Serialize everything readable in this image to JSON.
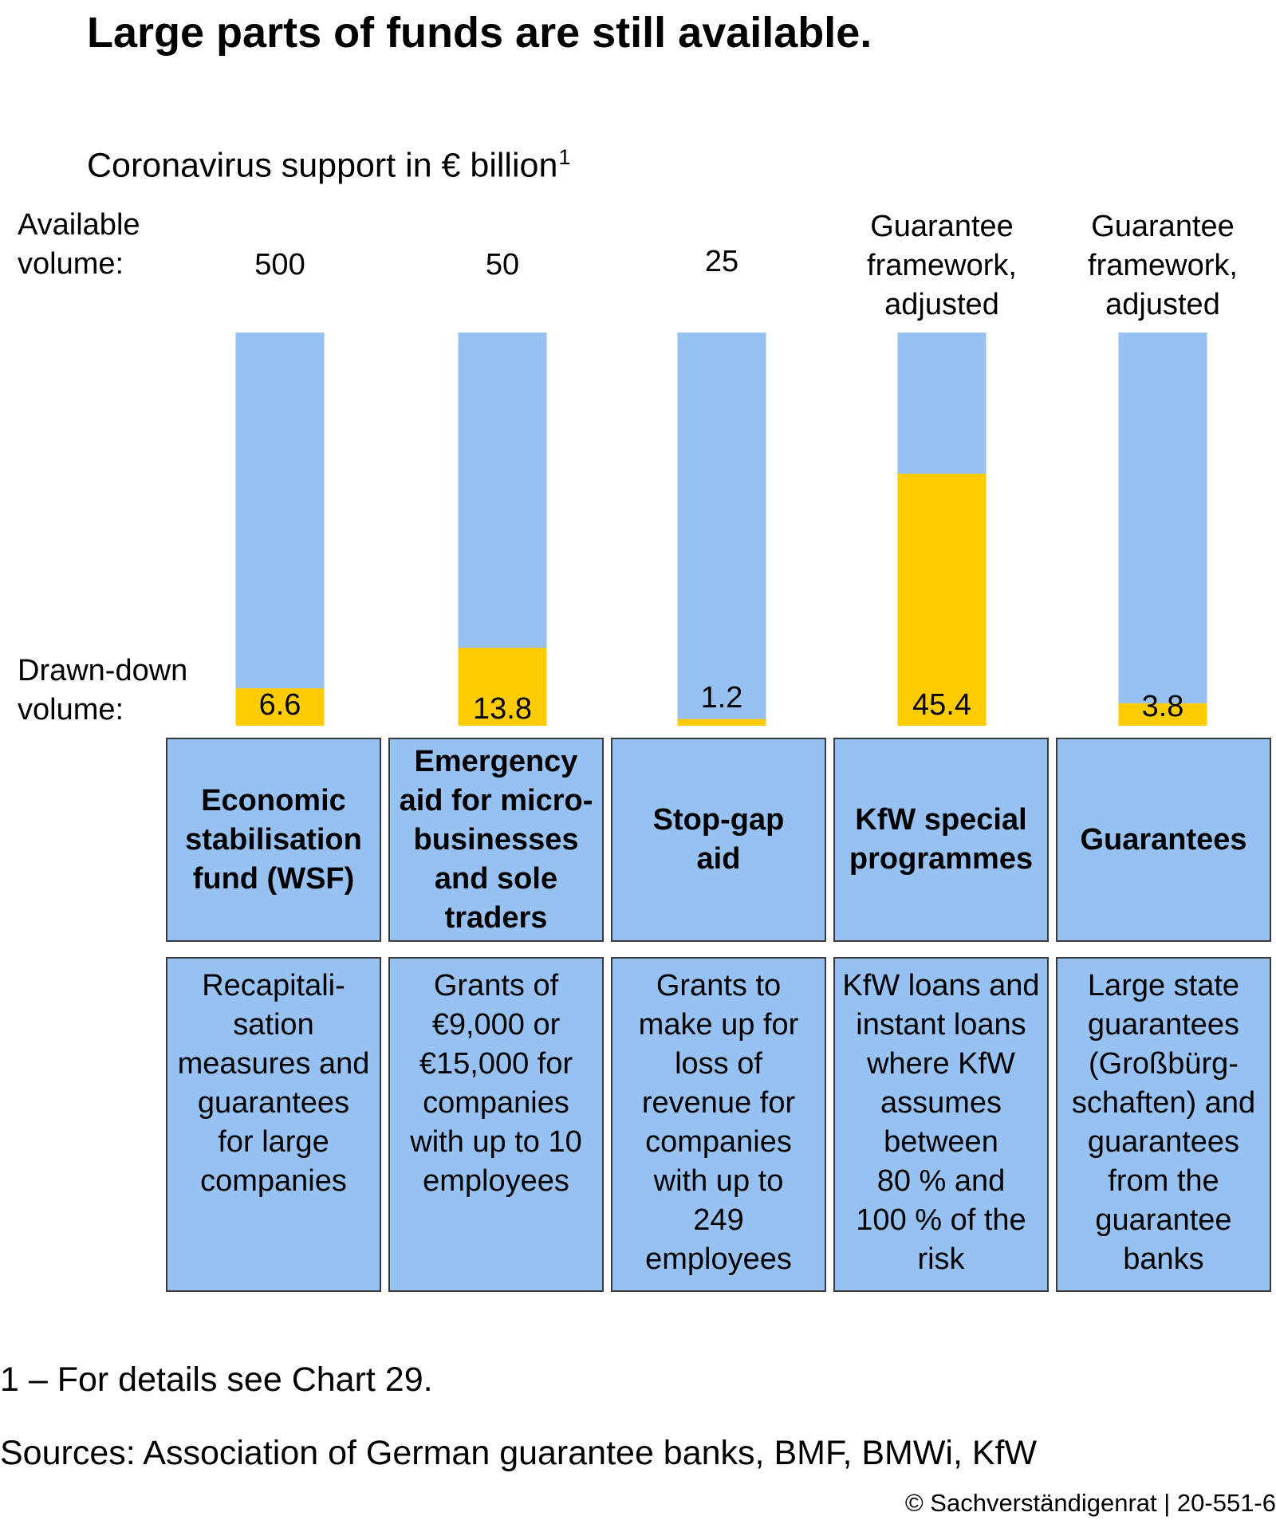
{
  "title": "Large parts of funds are still available.",
  "subtitle": "Coronavirus support in € billion",
  "subtitle_footnote_mark": "1",
  "labels": {
    "available": "Available\nvolume:",
    "drawn": "Drawn-down\nvolume:"
  },
  "colors": {
    "available": "#96c1f0",
    "drawn": "#ffcc00",
    "box": "#96c1f0"
  },
  "chart_data": {
    "type": "bar",
    "stacked": true,
    "categories": [
      "Economic stabilisation fund (WSF)",
      "Emergency aid for micro-businesses and sole traders",
      "Stop-gap aid",
      "KfW special programmes",
      "Guarantees"
    ],
    "available_labels": [
      "500",
      "50",
      "25",
      "Guarantee\nframework,\nadjusted",
      "Guarantee\nframework,\nadjusted"
    ],
    "drawn_labels": [
      "6.6",
      "13.8",
      "1.2",
      "45.4",
      "3.8"
    ],
    "drawn_share": [
      0.095,
      0.198,
      0.017,
      0.641,
      0.057
    ],
    "series": [
      {
        "name": "Available volume",
        "values": [
          500,
          50,
          25,
          null,
          null
        ]
      },
      {
        "name": "Drawn-down volume",
        "values": [
          6.6,
          13.8,
          1.2,
          45.4,
          3.8
        ]
      }
    ],
    "descriptions": [
      "Recapitali-\nsation\nmeasures and\nguarantees\nfor large\ncompanies",
      "Grants of\n€9,000 or\n€15,000 for\ncompanies\nwith up to 10\nemployees",
      "Grants to\nmake up for\nloss of\nrevenue for\ncompanies\nwith up to\n249\nemployees",
      "KfW loans and\ninstant loans\nwhere KfW\nassumes\nbetween\n80 % and\n100 % of the\nrisk",
      "Large state\nguarantees\n(Großbürg-\nschaften) and\nguarantees\nfrom the\nguarantee\nbanks"
    ],
    "names": [
      "Economic\nstabilisation\nfund (WSF)",
      "Emergency\naid for micro-\nbusinesses\nand sole\ntraders",
      "Stop-gap\naid",
      "KfW special\nprogrammes",
      "Guarantees"
    ]
  },
  "footnote": "1 – For details see Chart 29.",
  "sources": "Sources: Association of German guarantee banks, BMF, BMWi, KfW",
  "copyright": "© Sachverständigenrat | 20-551-6"
}
